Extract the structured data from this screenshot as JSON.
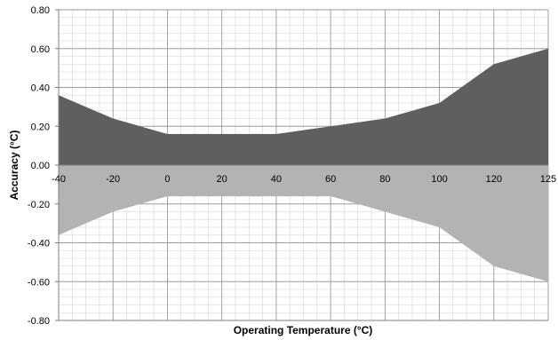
{
  "chart_data": {
    "type": "area",
    "title": "",
    "xlabel": "Operating Temperature (°C)",
    "ylabel": "Accuracy (°C)",
    "categories": [
      "-40",
      "-20",
      "0",
      "20",
      "40",
      "60",
      "80",
      "100",
      "120",
      "125"
    ],
    "series": [
      {
        "values": [
          0.36,
          0.24,
          0.16,
          0.16,
          0.16,
          0.2,
          0.24,
          0.32,
          0.52,
          0.6
        ],
        "color": "#5f5f5f"
      },
      {
        "values": [
          -0.36,
          -0.24,
          -0.16,
          -0.16,
          -0.16,
          -0.16,
          -0.24,
          -0.32,
          -0.52,
          -0.6
        ],
        "color": "#b3b3b3"
      }
    ],
    "ylim": [
      -0.8,
      0.8
    ],
    "yticks": [
      "-0.80",
      "-0.60",
      "-0.40",
      "-0.20",
      "0.00",
      "0.20",
      "0.40",
      "0.60",
      "0.80"
    ],
    "grid": true,
    "legend": "none"
  }
}
